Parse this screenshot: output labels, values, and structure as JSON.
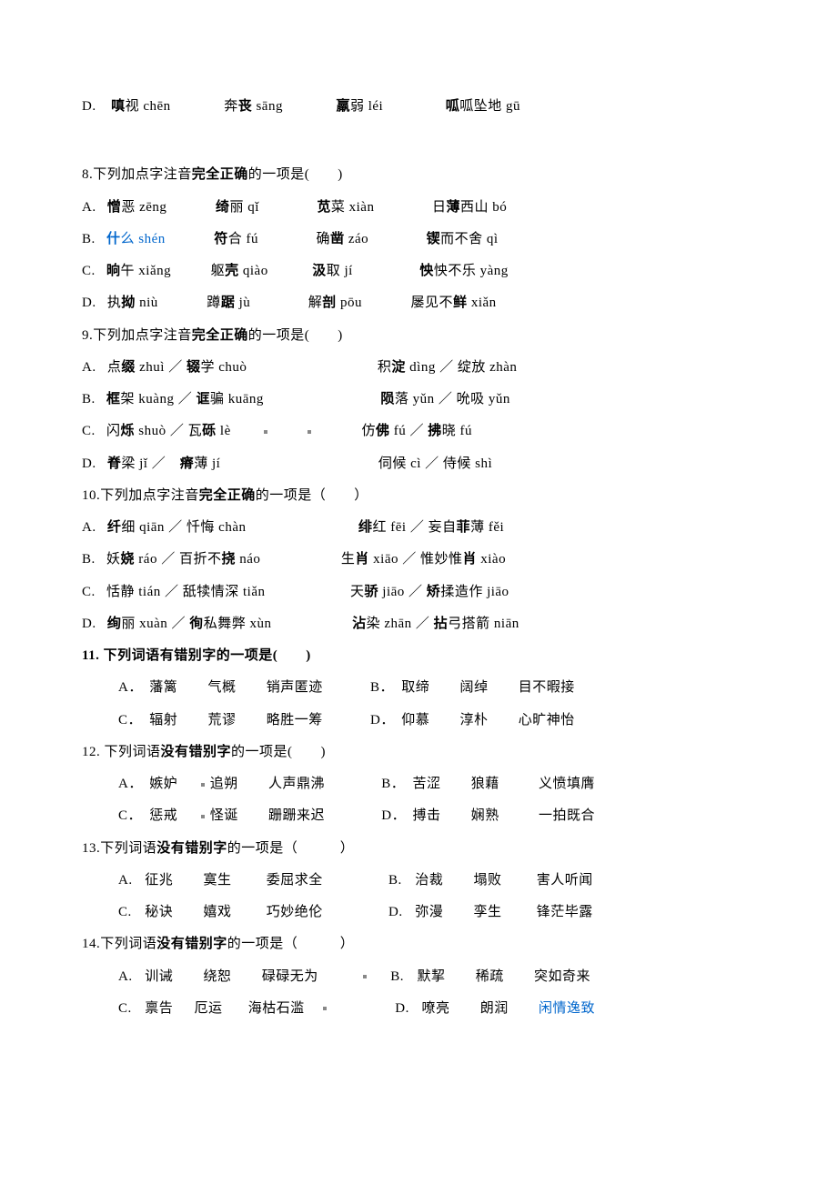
{
  "lineD0": {
    "prefix": "D.",
    "a1": "嗔",
    "a2": "视 chēn",
    "gap1": 50,
    "b1": "奔",
    "b2": "丧",
    "b3": " sāng",
    "gap2": 50,
    "c1": "羸",
    "c2": "弱 léi",
    "gap3": 60,
    "d1": "呱",
    "d2": "呱坠地 gū"
  },
  "q8": {
    "stem": "8.下列加点字注音",
    "bold": "完全正确",
    "tail": "的一项是(　　)",
    "A": {
      "p": "A.",
      "a1": "憎",
      "a2": "恶 zēng",
      "gap1": 45,
      "b1": "绮",
      "b2": "丽 qǐ",
      "gap2": 55,
      "c1": "苋",
      "c2": "菜 xiàn",
      "gap3": 55,
      "d1": "日",
      "d2": "薄",
      "d3": "西山 bó"
    },
    "B": {
      "p": "B.",
      "a1": "什",
      "a2": "么 shén",
      "gap1": 45,
      "b1": "符",
      "b2": "合 fú",
      "gap2": 55,
      "c1": "确",
      "c2": "凿",
      "c3": " záo",
      "gap3": 55,
      "d1": "锲",
      "d2": "而不舍 qì"
    },
    "C": {
      "p": "C.",
      "a1": "晌",
      "a2": "午 xiǎng",
      "gap1": 35,
      "b1": "躯",
      "b2": "壳",
      "b3": " qiào",
      "gap2": 40,
      "c1": "汲",
      "c2": "取 jí",
      "gap3": 65,
      "d1": "怏",
      "d2": "怏不乐 yàng"
    },
    "D": {
      "p": "D.",
      "a1": "执",
      "a2": "拗",
      "a3": " niù",
      "gap1": 45,
      "b1": "蹲",
      "b2": "踞",
      "b3": " jù",
      "gap2": 55,
      "c1": "解",
      "c2": "剖",
      "c3": " pōu",
      "gap3": 45,
      "d1": "屡见不",
      "d2": "鲜",
      "d3": " xiǎn"
    }
  },
  "q9": {
    "stem": "9.下列加点字注音",
    "bold": "完全正确",
    "tail": "的一项是(　　)",
    "A": {
      "p": "A.",
      "a": "点",
      "ab": "缀",
      "a2": " zhuì ／ ",
      "b": "辍",
      "b2": "学 chuò",
      "gap": 135,
      "c": "积",
      "cb": "淀",
      "c2": " dìng ／ 绽放 zhàn"
    },
    "B": {
      "p": "B.",
      "ab": "框",
      "a2": "架 kuàng ／ ",
      "b": "诓",
      "b2": "骗 kuāng",
      "gap": 120,
      "cb": "陨",
      "c2": "落 yǔn ／ 吮吸 yǔn"
    },
    "C": {
      "p": "C.",
      "a": "闪",
      "ab": "烁",
      "a2": " shuò ／ 瓦",
      "b": "砾",
      "b2": " lè",
      "gap": 155,
      "c": "仿",
      "cb": "佛",
      "c2": " fú ／ ",
      "d": "拂",
      "d2": "晓 fú"
    },
    "D": {
      "p": "D.",
      "ab": "脊",
      "a2": "梁 jǐ  ／　",
      "b": "瘠",
      "b2": "薄 jí",
      "gap": 165,
      "c": "伺",
      "c2": "候 cì ／ 侍候 shì"
    }
  },
  "q10": {
    "stem": "10.下列加点字注音",
    "bold": "完全正确",
    "tail": "的一项是（　　）",
    "A": {
      "p": "A.",
      "a": "纤",
      "a2": "细 qiān ／ 忏悔 chàn",
      "gap": 115,
      "c": "绯",
      "c2": "红 fēi ／ 妄自",
      "d": "菲",
      "d2": "薄 fěi"
    },
    "B": {
      "p": "B.",
      "a": "妖",
      "ab": "娆",
      "a2": " ráo ／  百折不",
      "b": "挠",
      "b2": " náo",
      "gap": 80,
      "c": "生",
      "cb": "肖",
      "c2": " xiāo ／ 惟妙惟",
      "d": "肖",
      "d2": " xiào"
    },
    "C": {
      "p": "C.",
      "a": "恬静 tián ／ 舐犊情深 tiǎn",
      "gap": 85,
      "c": "天",
      "cb": "骄",
      "c2": " jiāo ／ ",
      "d": "矫",
      "d2": "揉造作 jiāo"
    },
    "D": {
      "p": "D.",
      "ab": "绚",
      "a2": "丽 xuàn ／ ",
      "b": "徇",
      "b2": "私舞弊 xùn",
      "gap": 80,
      "cb": "沾",
      "c2": "染 zhān ／ ",
      "d": "拈",
      "d2": "弓搭箭 niān"
    }
  },
  "q11": {
    "stem1": "11. 下列词语",
    "bold": "有错别字",
    "stem2": "的一项是(　　)",
    "A": {
      "p": "A．",
      "w1": "藩篱",
      "w2": "气概",
      "w3": "销声匿迹"
    },
    "B": {
      "p": "B．",
      "w1": "取缔",
      "w2": "阔绰",
      "w3": "目不暇接"
    },
    "C": {
      "p": "C．",
      "w1": "辐射",
      "w2": "荒谬",
      "w3": "略胜一筹"
    },
    "D": {
      "p": "D．",
      "w1": "仰慕",
      "w2": "淳朴",
      "w3": "心旷神怡"
    }
  },
  "q12": {
    "stem1": "12. 下列词语",
    "bold": "没有错别字",
    "stem2": "的一项是(　　)",
    "A": {
      "p": "A．",
      "w1": "嫉妒",
      "w2": "追朔",
      "w3": "人声鼎沸"
    },
    "B": {
      "p": "B．",
      "w1": "苦涩",
      "w2": "狼藉",
      "w3": "义愤填膺"
    },
    "C": {
      "p": "C．",
      "w1": "惩戒",
      "w2": "怪诞",
      "w3": "跚跚来迟"
    },
    "D": {
      "p": "D．",
      "w1": "搏击",
      "w2": "娴熟",
      "w3": "一拍既合"
    }
  },
  "q13": {
    "stem1": "13.下列词语",
    "bold": "没有错别字",
    "stem2": "的一项是（　　　）",
    "A": {
      "p": "A.",
      "w1": "征兆",
      "w2": "寞生",
      "w3": "委屈求全"
    },
    "B": {
      "p": "B.",
      "w1": "治裁",
      "w2": "塌败",
      "w3": "害人听闻"
    },
    "C": {
      "p": "C.",
      "w1": "秘诀",
      "w2": "嬉戏",
      "w3": "巧妙绝伦"
    },
    "D": {
      "p": "D.",
      "w1": "弥漫",
      "w2": "孪生",
      "w3": "锋茫毕露"
    }
  },
  "q14": {
    "stem1": "14.下列词语",
    "bold": "没有错别字",
    "stem2": "的一项是（　　　）",
    "A": {
      "p": "A.",
      "w1": "训诫",
      "w2": "绕恕",
      "w3": "碌碌无为"
    },
    "B": {
      "p": "B.",
      "w1": "默挈",
      "w2": "稀疏",
      "w3": "突如奇来"
    },
    "C": {
      "p": "C.",
      "w1": "禀告",
      "w2": "厄运",
      "w3": "海枯石滥"
    },
    "D": {
      "p": "D.",
      "w1": "嘹亮",
      "w2": "朗润",
      "w3": "闲情逸致"
    }
  }
}
